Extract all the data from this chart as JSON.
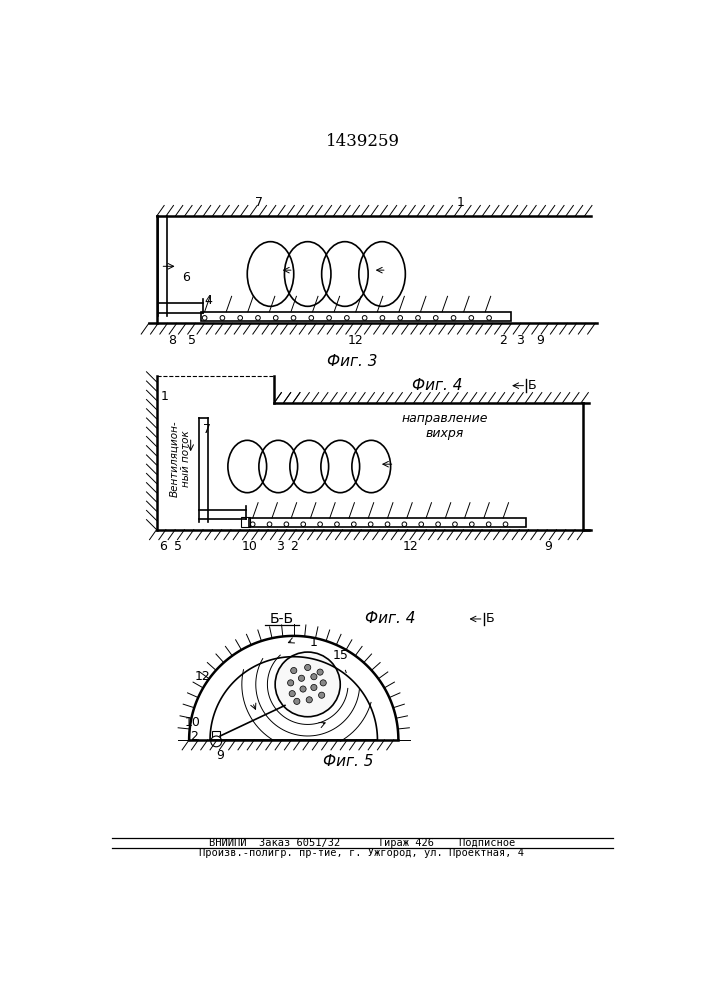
{
  "title": "1439259",
  "fig3_label": "Фиг. 3",
  "fig4_label": "Фиг. 4",
  "fig5_label": "Фиг. 5",
  "bb_label": "Б-Б",
  "b_label": "Б",
  "vent_text": "Вентиляцион-\nный поток",
  "napr_text": "направление\nвихря",
  "footer_line1": "ВНИИПИ  Заказ 6051/32      Тираж 426    Подписное",
  "footer_line2": "Произв.-полигр. пр-тие, г. Ужгород, ул. Проектная, 4",
  "bg_color": "#ffffff",
  "line_color": "#000000"
}
